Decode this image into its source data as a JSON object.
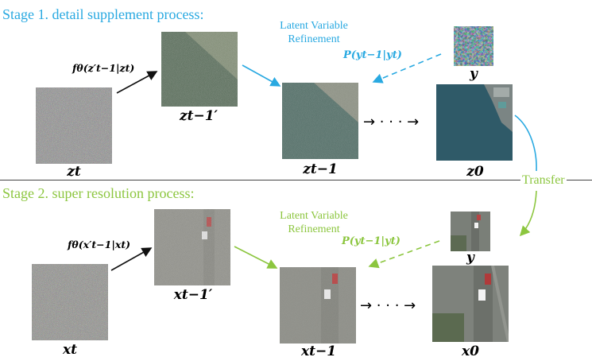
{
  "stage1": {
    "title": "Stage 1. detail supplement process:",
    "fn_label": "fθ(z′t−1|zt)",
    "refine_line1": "Latent Variable",
    "refine_line2": "Refinement",
    "prob_label": "P(yt−1|yt)",
    "labels": {
      "zt": "zt",
      "zt1_prime": "zt−1′",
      "zt1": "zt−1",
      "y": "y",
      "z0": "z0"
    },
    "dots": "→ · · · →"
  },
  "transfer_label": "Transfer",
  "stage2": {
    "title": "Stage 2. super resolution process:",
    "fn_label": "fθ(x′t−1|xt)",
    "refine_line1": "Latent Variable",
    "refine_line2": "Refinement",
    "prob_label": "P(yt−1|yt)",
    "labels": {
      "xt": "xt",
      "xt1_prime": "xt−1′",
      "xt1": "xt−1",
      "y": "y",
      "x0": "x0"
    },
    "dots": "→ · · · →"
  },
  "colors": {
    "stage1_accent": "#29a9e1",
    "stage2_accent": "#8cc63f",
    "arrow_dark": "#111111"
  }
}
